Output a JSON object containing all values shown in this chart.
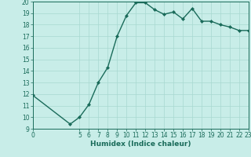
{
  "x": [
    0,
    4,
    5,
    6,
    7,
    8,
    9,
    10,
    11,
    12,
    13,
    14,
    15,
    16,
    17,
    18,
    19,
    20,
    21,
    22,
    23
  ],
  "y": [
    11.9,
    9.4,
    10.0,
    11.1,
    13.0,
    14.3,
    17.0,
    18.8,
    19.9,
    19.9,
    19.3,
    18.9,
    19.1,
    18.5,
    19.4,
    18.3,
    18.3,
    18.0,
    17.8,
    17.5,
    17.5
  ],
  "line_color": "#1a6b5a",
  "marker": "D",
  "marker_size": 2.0,
  "bg_color": "#c8ede8",
  "grid_color": "#a8d8d0",
  "xlabel": "Humidex (Indice chaleur)",
  "xlim": [
    0,
    23
  ],
  "ylim": [
    9,
    20
  ],
  "xticks": [
    0,
    5,
    6,
    7,
    8,
    9,
    10,
    11,
    12,
    13,
    14,
    15,
    16,
    17,
    18,
    19,
    20,
    21,
    22,
    23
  ],
  "yticks": [
    9,
    10,
    11,
    12,
    13,
    14,
    15,
    16,
    17,
    18,
    19,
    20
  ],
  "tick_color": "#1a6b5a",
  "tick_fontsize": 5.5,
  "xlabel_fontsize": 6.5,
  "linewidth": 1.0
}
